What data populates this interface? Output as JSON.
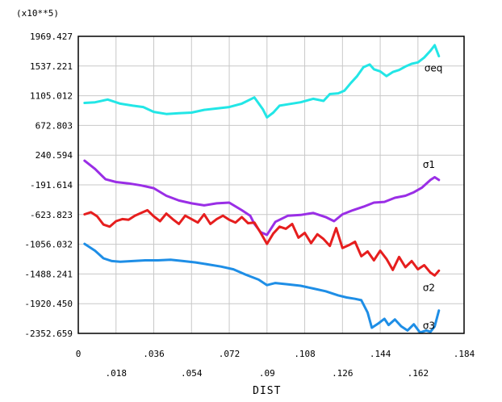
{
  "chart_data": {
    "type": "line",
    "title": "",
    "scale_label": "(x10**5)",
    "xlabel": "DIST",
    "ylabel": "",
    "xlim": [
      0,
      0.184
    ],
    "ylim": [
      -2352.659,
      1969.427
    ],
    "grid": true,
    "x_ticks": [
      0,
      0.018,
      0.036,
      0.054,
      0.072,
      0.09,
      0.108,
      0.126,
      0.144,
      0.162,
      0.184
    ],
    "x_tick_labels": [
      "0",
      ".018",
      ".036",
      ".054",
      ".072",
      ".09",
      ".108",
      ".126",
      ".144",
      ".162",
      ".184"
    ],
    "y_ticks": [
      1969.427,
      1537.221,
      1105.012,
      672.803,
      240.594,
      -191.614,
      -623.823,
      -1056.032,
      -1488.241,
      -1920.45,
      -2352.659
    ],
    "y_tick_labels": [
      "1969.427",
      "1537.221",
      "1105.012",
      "672.803",
      "240.594",
      "-191.614",
      "-623.823",
      "-1056.032",
      "-1488.241",
      "-1920.450",
      "-2352.659"
    ],
    "series": [
      {
        "name": "σeq",
        "color": "#22e6e6",
        "x": [
          0.003,
          0.008,
          0.014,
          0.02,
          0.026,
          0.031,
          0.036,
          0.042,
          0.048,
          0.054,
          0.06,
          0.066,
          0.072,
          0.078,
          0.084,
          0.088,
          0.09,
          0.093,
          0.096,
          0.1,
          0.106,
          0.112,
          0.117,
          0.12,
          0.124,
          0.127,
          0.13,
          0.133,
          0.136,
          0.139,
          0.141,
          0.144,
          0.147,
          0.15,
          0.153,
          0.156,
          0.159,
          0.162,
          0.165,
          0.168,
          0.17,
          0.172
        ],
        "y": [
          1000,
          1010,
          1050,
          990,
          960,
          940,
          870,
          840,
          850,
          860,
          900,
          920,
          940,
          990,
          1080,
          910,
          790,
          860,
          960,
          980,
          1010,
          1060,
          1030,
          1130,
          1140,
          1180,
          1290,
          1390,
          1520,
          1560,
          1490,
          1460,
          1390,
          1450,
          1480,
          1530,
          1570,
          1590,
          1660,
          1760,
          1840,
          1680
        ]
      },
      {
        "name": "σ1",
        "color": "#9a2ee6",
        "x": [
          0.003,
          0.008,
          0.013,
          0.018,
          0.024,
          0.03,
          0.036,
          0.042,
          0.048,
          0.054,
          0.06,
          0.066,
          0.072,
          0.078,
          0.082,
          0.084,
          0.087,
          0.09,
          0.094,
          0.1,
          0.106,
          0.112,
          0.118,
          0.122,
          0.126,
          0.131,
          0.136,
          0.141,
          0.146,
          0.151,
          0.156,
          0.16,
          0.164,
          0.168,
          0.17,
          0.172
        ],
        "y": [
          160,
          40,
          -110,
          -150,
          -170,
          -200,
          -240,
          -350,
          -420,
          -460,
          -490,
          -460,
          -450,
          -560,
          -640,
          -760,
          -880,
          -920,
          -730,
          -640,
          -630,
          -600,
          -660,
          -720,
          -620,
          -560,
          -510,
          -450,
          -440,
          -380,
          -350,
          -300,
          -230,
          -120,
          -80,
          -120
        ]
      },
      {
        "name": "σ2",
        "color": "#e61e1e",
        "x": [
          0.003,
          0.006,
          0.009,
          0.012,
          0.015,
          0.018,
          0.021,
          0.024,
          0.027,
          0.03,
          0.033,
          0.036,
          0.039,
          0.042,
          0.045,
          0.048,
          0.051,
          0.054,
          0.057,
          0.06,
          0.063,
          0.066,
          0.069,
          0.072,
          0.075,
          0.078,
          0.081,
          0.084,
          0.087,
          0.09,
          0.093,
          0.096,
          0.099,
          0.102,
          0.105,
          0.108,
          0.111,
          0.114,
          0.117,
          0.12,
          0.123,
          0.126,
          0.129,
          0.132,
          0.135,
          0.138,
          0.141,
          0.144,
          0.147,
          0.15,
          0.153,
          0.156,
          0.159,
          0.162,
          0.165,
          0.168,
          0.17,
          0.172
        ],
        "y": [
          -620,
          -590,
          -650,
          -770,
          -800,
          -720,
          -690,
          -700,
          -640,
          -600,
          -560,
          -650,
          -720,
          -610,
          -690,
          -760,
          -640,
          -690,
          -740,
          -620,
          -760,
          -690,
          -640,
          -700,
          -740,
          -660,
          -750,
          -740,
          -890,
          -1050,
          -900,
          -800,
          -830,
          -760,
          -960,
          -890,
          -1040,
          -910,
          -980,
          -1080,
          -820,
          -1110,
          -1070,
          -1020,
          -1230,
          -1160,
          -1290,
          -1150,
          -1270,
          -1430,
          -1240,
          -1390,
          -1300,
          -1420,
          -1360,
          -1470,
          -1510,
          -1440
        ]
      },
      {
        "name": "σ3",
        "color": "#1e8ee6",
        "x": [
          0.003,
          0.008,
          0.012,
          0.016,
          0.02,
          0.026,
          0.032,
          0.038,
          0.044,
          0.05,
          0.056,
          0.062,
          0.068,
          0.074,
          0.08,
          0.086,
          0.09,
          0.094,
          0.1,
          0.106,
          0.112,
          0.118,
          0.124,
          0.128,
          0.132,
          0.135,
          0.138,
          0.14,
          0.143,
          0.146,
          0.148,
          0.151,
          0.154,
          0.157,
          0.16,
          0.163,
          0.166,
          0.168,
          0.17,
          0.172
        ],
        "y": [
          -1050,
          -1150,
          -1260,
          -1300,
          -1310,
          -1300,
          -1290,
          -1290,
          -1280,
          -1300,
          -1320,
          -1350,
          -1380,
          -1420,
          -1500,
          -1570,
          -1650,
          -1620,
          -1640,
          -1660,
          -1700,
          -1740,
          -1800,
          -1830,
          -1850,
          -1870,
          -2050,
          -2270,
          -2210,
          -2140,
          -2230,
          -2150,
          -2250,
          -2310,
          -2220,
          -2340,
          -2310,
          -2330,
          -2250,
          -2020
        ]
      }
    ]
  }
}
